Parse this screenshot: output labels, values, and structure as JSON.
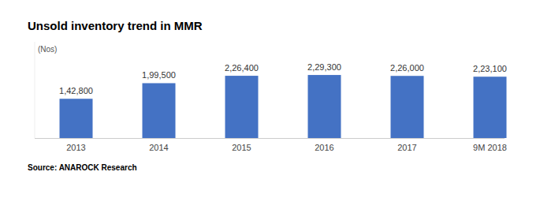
{
  "chart_data": {
    "type": "bar",
    "title": "Unsold inventory trend in MMR",
    "ylabel": "(Nos)",
    "source": "Source: ANAROCK Research",
    "categories": [
      "2013",
      "2014",
      "2015",
      "2016",
      "2017",
      "9M 2018"
    ],
    "values": [
      142800,
      199500,
      226400,
      229300,
      226000,
      223100
    ],
    "value_labels": [
      "1,42,800",
      "1,99,500",
      "2,26,400",
      "2,29,300",
      "2,26,000",
      "2,23,100"
    ],
    "color": "#4472c4",
    "ylim": [
      0,
      350000
    ],
    "grid": false,
    "data_labels": true,
    "tick_labels": "x"
  }
}
